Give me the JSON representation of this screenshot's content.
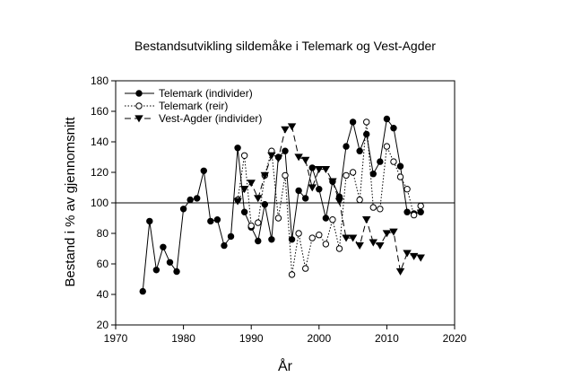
{
  "chart_data": {
    "type": "line",
    "title": "Bestandsutvikling sildemåke i Telemark og Vest-Agder",
    "xlabel": "År",
    "ylabel": "Bestand i % av gjennomsnitt",
    "xlim": [
      1970,
      2020
    ],
    "ylim": [
      20,
      180
    ],
    "xticks": [
      1970,
      1980,
      1990,
      2000,
      2010,
      2020
    ],
    "yticks": [
      20,
      40,
      60,
      80,
      100,
      120,
      140,
      160,
      180
    ],
    "reference_line": 100,
    "legend_position": "top-left",
    "grid": false,
    "series": [
      {
        "name": "Telemark (individer)",
        "marker": "filled-circle",
        "line": "solid",
        "x": [
          1974,
          1975,
          1976,
          1977,
          1978,
          1979,
          1980,
          1981,
          1982,
          1983,
          1984,
          1985,
          1986,
          1987,
          1988,
          1989,
          1990,
          1991,
          1992,
          1993,
          1994,
          1995,
          1996,
          1997,
          1998,
          1999,
          2000,
          2001,
          2002,
          2003,
          2004,
          2005,
          2006,
          2007,
          2008,
          2009,
          2010,
          2011,
          2012,
          2013,
          2014,
          2015
        ],
        "y": [
          42,
          88,
          56,
          71,
          61,
          55,
          96,
          102,
          103,
          121,
          88,
          89,
          72,
          78,
          136,
          94,
          84,
          75,
          99,
          76,
          130,
          134,
          76,
          108,
          103,
          123,
          109,
          90,
          114,
          104,
          137,
          153,
          134,
          145,
          119,
          127,
          155,
          149,
          124,
          94,
          93,
          94
        ]
      },
      {
        "name": "Telemark (reir)",
        "marker": "open-circle",
        "line": "dotted",
        "x": [
          1988,
          1989,
          1990,
          1991,
          1992,
          1993,
          1994,
          1995,
          1996,
          1997,
          1998,
          1999,
          2000,
          2001,
          2002,
          2003,
          2004,
          2005,
          2006,
          2007,
          2008,
          2009,
          2010,
          2011,
          2012,
          2013,
          2014,
          2015
        ],
        "y": [
          102,
          131,
          85,
          87,
          118,
          134,
          90,
          118,
          53,
          80,
          57,
          77,
          79,
          73,
          89,
          70,
          118,
          120,
          102,
          153,
          97,
          96,
          137,
          127,
          117,
          109,
          92,
          98
        ]
      },
      {
        "name": "Vest-Agder (individer)",
        "marker": "filled-triangle-down",
        "line": "dashed",
        "x": [
          1988,
          1989,
          1990,
          1991,
          1992,
          1993,
          1994,
          1995,
          1996,
          1997,
          1998,
          1999,
          2000,
          2001,
          2002,
          2003,
          2004,
          2005,
          2006,
          2007,
          2008,
          2009,
          2010,
          2011,
          2012,
          2013,
          2014,
          2015
        ],
        "y": [
          101,
          109,
          113,
          103,
          118,
          131,
          129,
          148,
          150,
          130,
          128,
          110,
          122,
          122,
          114,
          101,
          77,
          77,
          72,
          89,
          74,
          72,
          80,
          81,
          55,
          67,
          65,
          64
        ]
      }
    ]
  }
}
